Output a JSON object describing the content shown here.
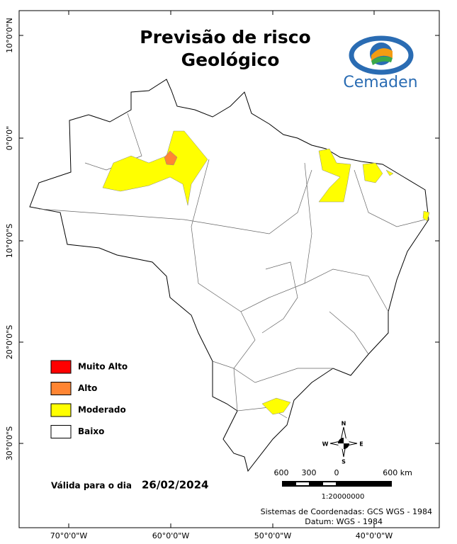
{
  "title": [
    "Previsão de risco",
    "Geológico"
  ],
  "logo": "Cemaden",
  "lat_labels": [
    "10°0'0\"N",
    "0°0'0\"",
    "10°0'0\"S",
    "20°0'0\"S",
    "30°0'0\"S"
  ],
  "lon_labels": [
    "70°0'0\"W",
    "60°0'0\"W",
    "50°0'0\"W",
    "40°0'0\"W"
  ],
  "legend": [
    {
      "label": "Muito Alto",
      "color": "#ff0000"
    },
    {
      "label": "Alto",
      "color": "#ff8533"
    },
    {
      "label": "Moderado",
      "color": "#ffff00"
    },
    {
      "label": "Baixo",
      "color": "#ffffff"
    }
  ],
  "validity": {
    "label": "Válida para o dia",
    "date": "26/02/2024"
  },
  "scale": {
    "labels": [
      "600",
      "300",
      "0",
      "600 km"
    ],
    "ratio": "1:20000000"
  },
  "compass": {
    "n": "N",
    "s": "S",
    "e": "E",
    "w": "W"
  },
  "footer": [
    "Sistemas de Coordenadas: GCS WGS - 1984",
    "Datum: WGS - 1984"
  ]
}
